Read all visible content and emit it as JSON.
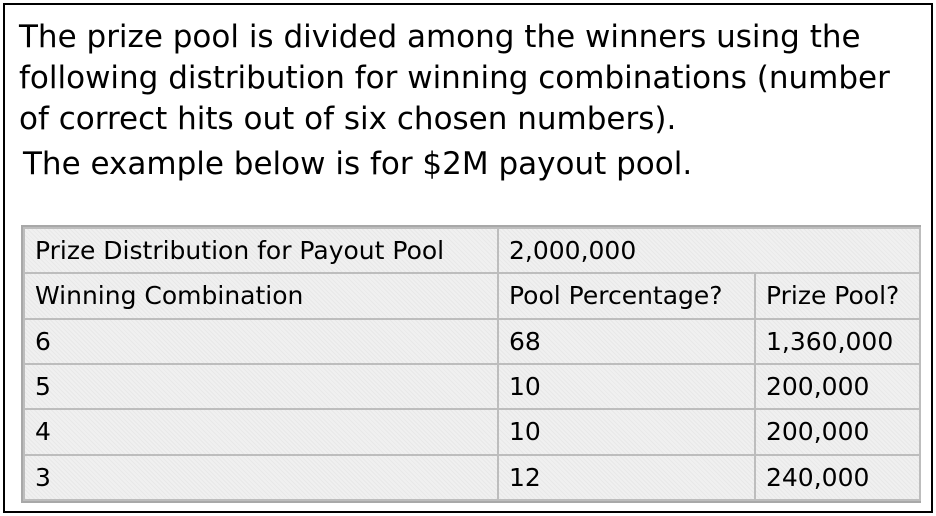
{
  "intro": {
    "paragraph": "The prize pool is divided among the winners using the following distribution for winning combinations (number of correct hits out of six chosen numbers).",
    "example": "The example below is for $2M payout pool."
  },
  "table": {
    "title_label": "Prize Distribution for Payout Pool",
    "title_value": "2,000,000",
    "headers": [
      "Winning Combination",
      "Pool Percentage?",
      "Prize Pool?"
    ],
    "rows": [
      {
        "combination": "6",
        "percentage": "68",
        "prize": "1,360,000"
      },
      {
        "combination": "5",
        "percentage": "10",
        "prize": "200,000"
      },
      {
        "combination": "4",
        "percentage": "10",
        "prize": "200,000"
      },
      {
        "combination": "3",
        "percentage": "12",
        "prize": "240,000"
      }
    ]
  }
}
